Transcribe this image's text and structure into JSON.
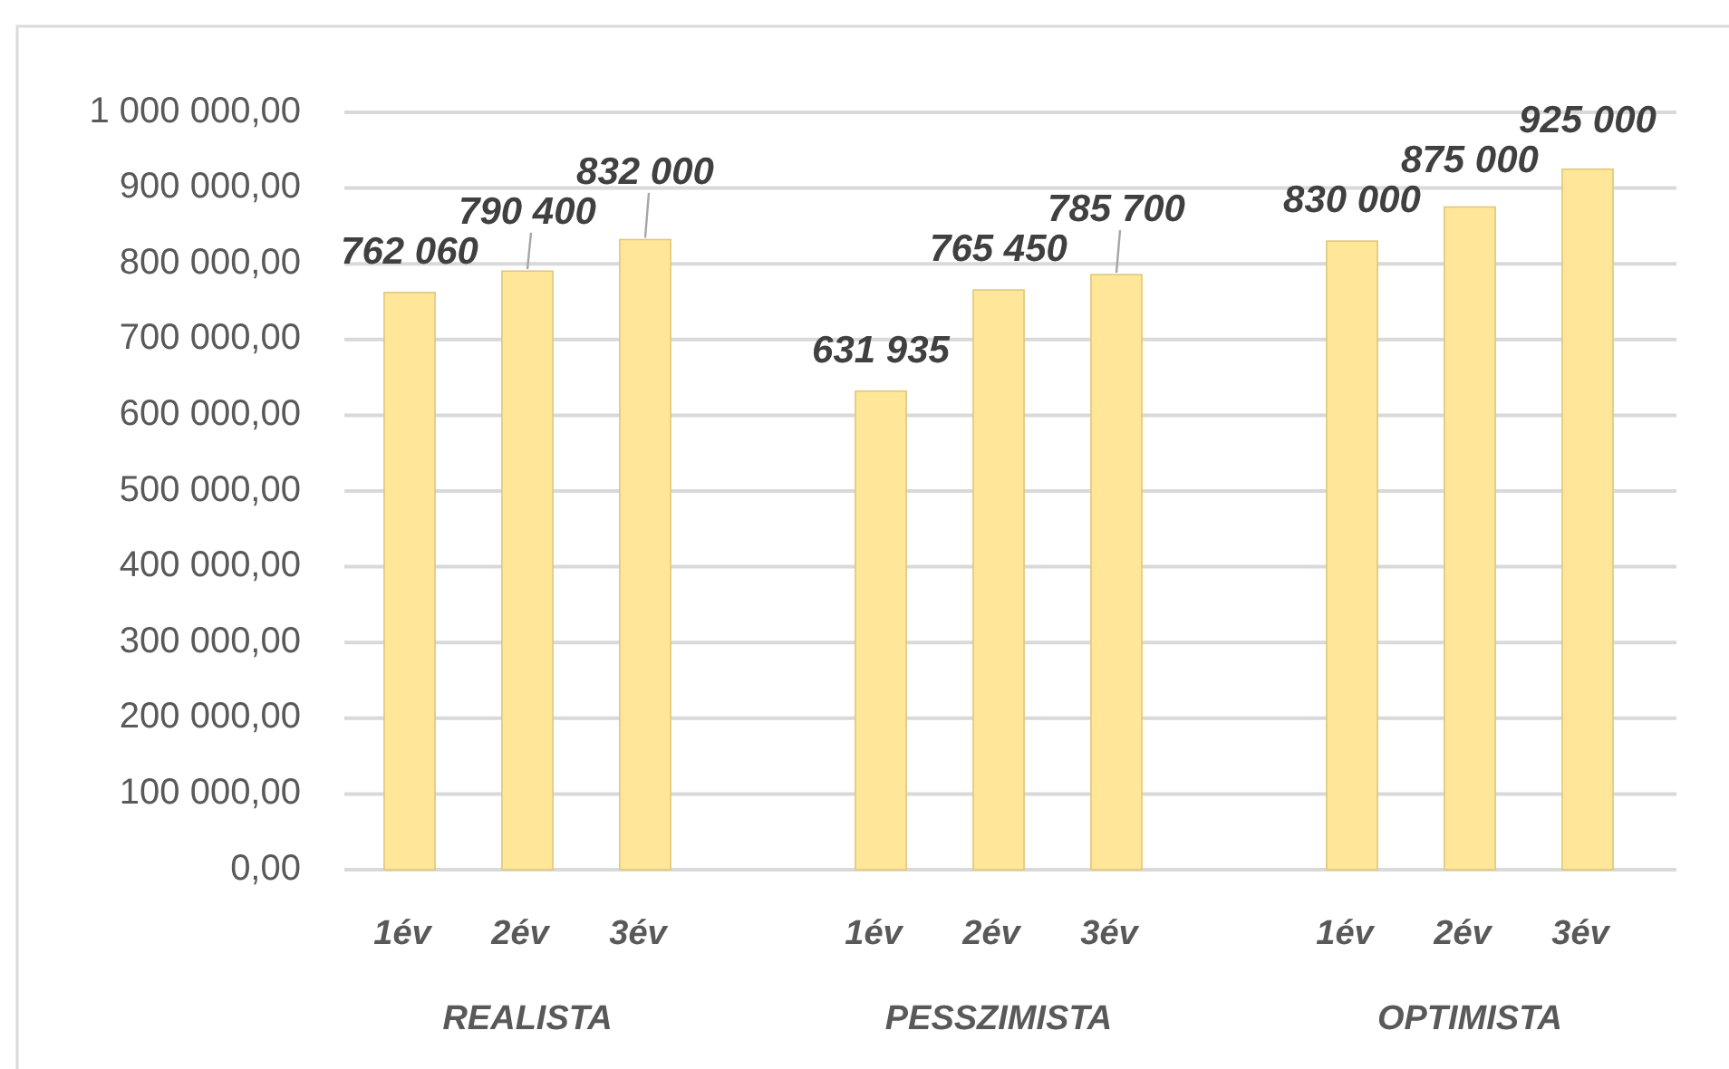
{
  "chart_data": {
    "type": "bar",
    "categories": [
      "REALISTA",
      "PESSZIMISTA",
      "OPTIMISTA"
    ],
    "series": [
      {
        "name": "1év",
        "color": "#ffe699",
        "values": [
          762060,
          631935,
          830000
        ],
        "value_labels": [
          "762 060",
          "631 935",
          "830 000"
        ]
      },
      {
        "name": "2év",
        "color": "#ffe699",
        "values": [
          790400,
          765450,
          875000
        ],
        "value_labels": [
          "790 400",
          "765 450",
          "875 000"
        ]
      },
      {
        "name": "3év",
        "color": "#ffe699",
        "values": [
          832000,
          785700,
          925000
        ],
        "value_labels": [
          "832 000",
          "785 700",
          "925 000"
        ]
      }
    ],
    "ylim": [
      0,
      1000000
    ],
    "yticks": [
      {
        "value": 0,
        "label": "0,00"
      },
      {
        "value": 100000,
        "label": "100 000,00"
      },
      {
        "value": 200000,
        "label": "200 000,00"
      },
      {
        "value": 300000,
        "label": "300 000,00"
      },
      {
        "value": 400000,
        "label": "400 000,00"
      },
      {
        "value": 500000,
        "label": "500 000,00"
      },
      {
        "value": 600000,
        "label": "600 000,00"
      },
      {
        "value": 700000,
        "label": "700 000,00"
      },
      {
        "value": 800000,
        "label": "800 000,00"
      },
      {
        "value": 900000,
        "label": "900 000,00"
      },
      {
        "value": 1000000,
        "label": "1 000 000,00"
      }
    ],
    "grid": "y"
  }
}
